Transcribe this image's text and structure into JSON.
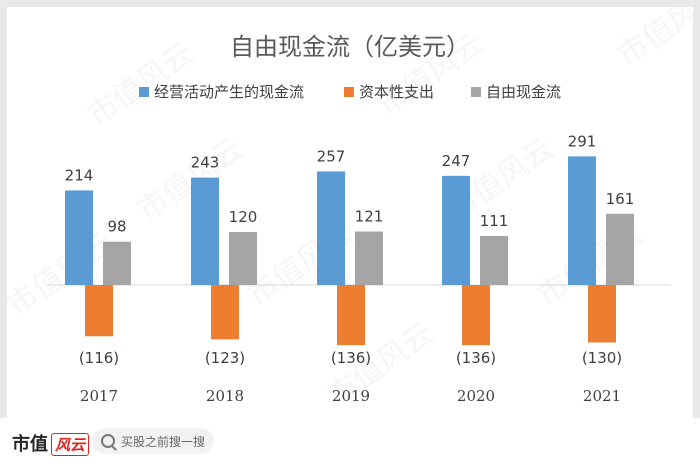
{
  "chart_data": {
    "type": "bar",
    "title": "自由现金流（亿美元）",
    "categories": [
      "2017",
      "2018",
      "2019",
      "2020",
      "2021"
    ],
    "series": [
      {
        "name": "经营活动产生的现金流",
        "values": [
          214,
          243,
          257,
          247,
          291
        ],
        "labels": [
          "214",
          "243",
          "257",
          "247",
          "291"
        ],
        "color": "#5b9bd5"
      },
      {
        "name": "资本性支出",
        "values": [
          -116,
          -123,
          -136,
          -136,
          -130
        ],
        "labels": [
          "(116)",
          "(123)",
          "(136)",
          "(136)",
          "(130)"
        ],
        "color": "#ed7d31"
      },
      {
        "name": "自由现金流",
        "values": [
          98,
          120,
          121,
          111,
          161
        ],
        "labels": [
          "98",
          "120",
          "121",
          "111",
          "161"
        ],
        "color": "#a5a5a5"
      }
    ],
    "legend_position": "top",
    "grid": false,
    "ylim": [
      -140,
      300
    ]
  },
  "watermark": "市值风云",
  "footer": {
    "brand": "市值",
    "brand_mark": "风云",
    "search_placeholder": "买股之前搜一搜"
  }
}
